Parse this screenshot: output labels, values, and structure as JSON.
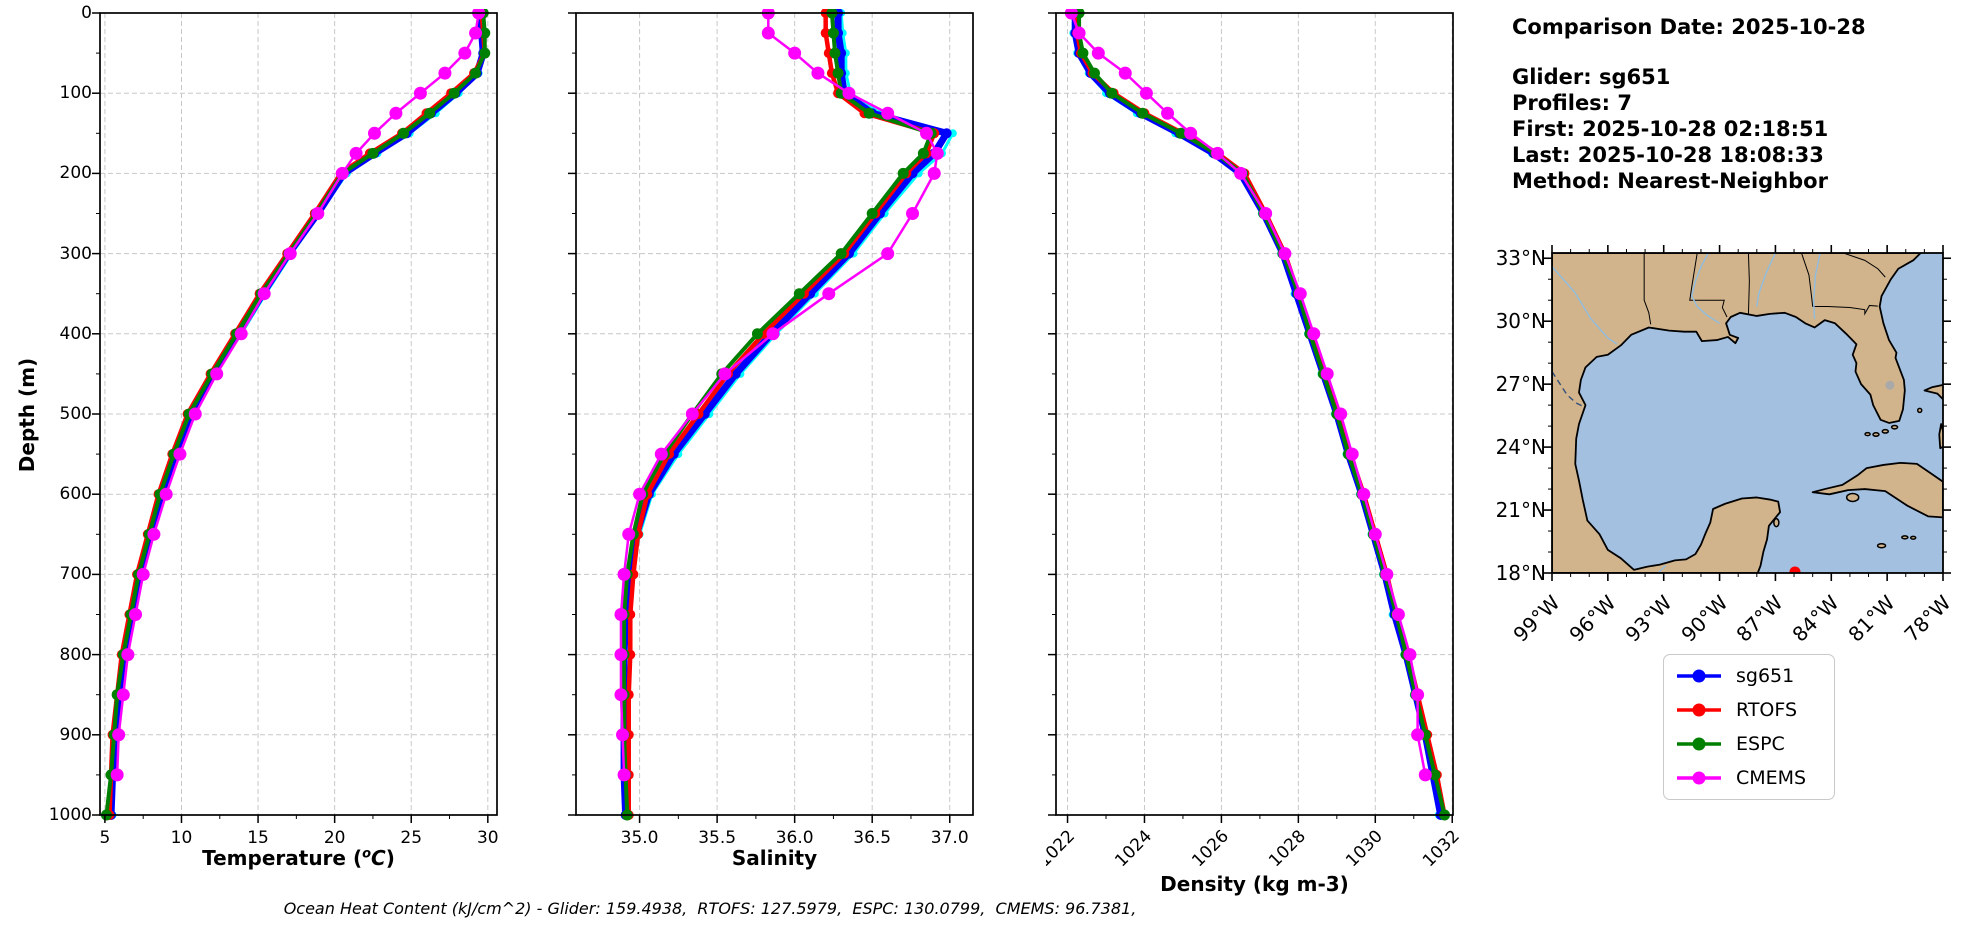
{
  "info_panel": {
    "comparison_date": "Comparison Date: 2025-10-28",
    "glider": "Glider: sg651",
    "profiles": "Profiles: 7",
    "first": "First: 2025-10-28 02:18:51",
    "last": "Last: 2025-10-28 18:08:33",
    "method": "Method: Nearest-Neighbor"
  },
  "ylabel": "Depth (m)",
  "depth_ticks": [
    0,
    100,
    200,
    300,
    400,
    500,
    600,
    700,
    800,
    900,
    1000
  ],
  "caption": "Ocean Heat Content (kJ/cm^2) - Glider: 159.4938,  RTOFS: 127.5979,  ESPC: 130.0799,  CMEMS: 96.7381,",
  "ocean_heat_content": {
    "glider": 159.4938,
    "rtofs": 127.5979,
    "espc": 130.0799,
    "cmems": 96.7381
  },
  "legend": {
    "entries": [
      {
        "label": "sg651",
        "color": "#0000ff"
      },
      {
        "label": "RTOFS",
        "color": "#ff0000"
      },
      {
        "label": "ESPC",
        "color": "#008000"
      },
      {
        "label": "CMEMS",
        "color": "#ff00ff"
      }
    ]
  },
  "profile_depths": [
    0,
    25,
    50,
    75,
    100,
    125,
    150,
    175,
    200,
    250,
    300,
    350,
    400,
    450,
    500,
    550,
    600,
    650,
    700,
    750,
    800,
    850,
    900,
    950,
    1000
  ],
  "chart_data": [
    {
      "type": "line",
      "xlabel": "Temperature (°C)",
      "xlabel_parts": {
        "pre": "Temperature (",
        "sup": "o",
        "it": "C",
        "post": ")"
      },
      "ylabel": "Depth (m)",
      "xlim": [
        4.68,
        30.6
      ],
      "ylim": [
        1000,
        0
      ],
      "xticks": [
        5,
        10,
        15,
        20,
        25,
        30
      ],
      "grid": true,
      "x_tick_rotation": 0,
      "series": [
        {
          "name": "glider-individual-profiles",
          "color": "#00ffff",
          "in_legend": false,
          "values": [
            29.5,
            29.6,
            29.8,
            29.4,
            28.1,
            26.6,
            24.9,
            22.8,
            20.8,
            19.0,
            17.2,
            15.5,
            13.9,
            12.2,
            10.8,
            9.8,
            8.9,
            8.1,
            7.4,
            6.9,
            6.4,
            6.0,
            5.8,
            5.6,
            5.5
          ]
        },
        {
          "name": "sg651",
          "color": "#0000ff",
          "in_legend": true,
          "values": [
            29.5,
            29.6,
            29.7,
            29.3,
            27.9,
            26.3,
            24.7,
            22.6,
            20.6,
            18.9,
            17.0,
            15.3,
            13.7,
            12.1,
            10.6,
            9.6,
            8.7,
            8.0,
            7.3,
            6.8,
            6.3,
            5.9,
            5.7,
            5.5,
            5.4
          ]
        },
        {
          "name": "RTOFS",
          "color": "#ff0000",
          "in_legend": true,
          "values": [
            29.6,
            29.7,
            29.8,
            29.1,
            27.6,
            26.0,
            24.4,
            22.3,
            20.4,
            18.7,
            16.9,
            15.1,
            13.5,
            11.9,
            10.4,
            9.4,
            8.5,
            7.8,
            7.1,
            6.6,
            6.1,
            5.8,
            5.5,
            5.4,
            5.3
          ]
        },
        {
          "name": "ESPC",
          "color": "#008000",
          "in_legend": true,
          "values": [
            29.7,
            29.8,
            29.8,
            29.2,
            27.8,
            26.2,
            24.5,
            22.5,
            20.5,
            18.8,
            17.0,
            15.2,
            13.6,
            12.0,
            10.5,
            9.5,
            8.6,
            7.9,
            7.2,
            6.7,
            6.2,
            5.8,
            5.6,
            5.4,
            5.1
          ]
        },
        {
          "name": "CMEMS",
          "color": "#ff00ff",
          "in_legend": true,
          "values": [
            29.4,
            29.2,
            28.5,
            27.2,
            25.6,
            24.0,
            22.6,
            21.4,
            20.5,
            18.9,
            17.1,
            15.4,
            13.9,
            12.3,
            10.9,
            9.9,
            9.0,
            8.2,
            7.5,
            7.0,
            6.5,
            6.2,
            5.9,
            5.8,
            null
          ]
        }
      ]
    },
    {
      "type": "line",
      "xlabel": "Salinity",
      "ylabel": "Depth (m)",
      "xlim": [
        34.59,
        37.15
      ],
      "ylim": [
        1000,
        0
      ],
      "xticks": [
        35.0,
        35.5,
        36.0,
        36.5,
        37.0
      ],
      "grid": true,
      "x_tick_rotation": 0,
      "series": [
        {
          "name": "glider-individual-profiles",
          "color": "#00ffff",
          "in_legend": false,
          "values": [
            36.3,
            36.31,
            36.33,
            36.33,
            36.36,
            36.55,
            37.02,
            36.95,
            36.8,
            36.58,
            36.38,
            36.13,
            35.88,
            35.65,
            35.45,
            35.25,
            35.08,
            35.0,
            34.95,
            34.92,
            34.91,
            34.91,
            34.91,
            34.91,
            34.92
          ]
        },
        {
          "name": "sg651",
          "color": "#0000ff",
          "in_legend": true,
          "values": [
            36.28,
            36.28,
            36.3,
            36.3,
            36.32,
            36.5,
            36.98,
            36.9,
            36.76,
            36.55,
            36.35,
            36.1,
            35.85,
            35.62,
            35.42,
            35.22,
            35.06,
            34.98,
            34.93,
            34.91,
            34.9,
            34.9,
            34.9,
            34.9,
            34.91
          ]
        },
        {
          "name": "RTOFS",
          "color": "#ff0000",
          "in_legend": true,
          "values": [
            36.2,
            36.2,
            36.22,
            36.24,
            36.28,
            36.45,
            36.9,
            36.85,
            36.72,
            36.52,
            36.32,
            36.06,
            35.8,
            35.57,
            35.38,
            35.19,
            35.05,
            34.99,
            34.96,
            34.94,
            34.94,
            34.93,
            34.93,
            34.93,
            34.93
          ]
        },
        {
          "name": "ESPC",
          "color": "#008000",
          "in_legend": true,
          "values": [
            36.24,
            36.25,
            36.26,
            36.28,
            36.3,
            36.48,
            36.88,
            36.83,
            36.7,
            36.5,
            36.3,
            36.03,
            35.76,
            35.53,
            35.34,
            35.16,
            35.02,
            34.96,
            34.92,
            34.9,
            34.9,
            34.9,
            34.9,
            34.91,
            34.92
          ]
        },
        {
          "name": "CMEMS",
          "color": "#ff00ff",
          "in_legend": true,
          "values": [
            35.83,
            35.83,
            36.0,
            36.15,
            36.35,
            36.6,
            36.85,
            36.92,
            36.9,
            36.76,
            36.6,
            36.22,
            35.86,
            35.55,
            35.34,
            35.14,
            35.0,
            34.93,
            34.9,
            34.88,
            34.88,
            34.88,
            34.89,
            34.9,
            null
          ]
        }
      ]
    },
    {
      "type": "line",
      "xlabel": "Density (kg m-3)",
      "ylabel": "Depth (m)",
      "xlim": [
        1021.7,
        1032.02
      ],
      "ylim": [
        1000,
        0
      ],
      "xticks": [
        1022,
        1024,
        1026,
        1028,
        1030,
        1032
      ],
      "grid": true,
      "x_tick_rotation": 45,
      "series": [
        {
          "name": "glider-individual-profiles",
          "color": "#00ffff",
          "in_legend": false,
          "values": [
            1022.15,
            1022.15,
            1022.25,
            1022.55,
            1023.0,
            1023.8,
            1024.8,
            1025.75,
            1026.45,
            1027.05,
            1027.55,
            1027.9,
            1028.25,
            1028.6,
            1028.95,
            1029.25,
            1029.6,
            1029.9,
            1030.2,
            1030.45,
            1030.75,
            1031.0,
            1031.25,
            1031.45,
            1031.65
          ]
        },
        {
          "name": "sg651",
          "color": "#0000ff",
          "in_legend": true,
          "values": [
            1022.2,
            1022.2,
            1022.3,
            1022.6,
            1023.1,
            1023.9,
            1024.9,
            1025.8,
            1026.5,
            1027.1,
            1027.6,
            1027.95,
            1028.3,
            1028.65,
            1029.0,
            1029.3,
            1029.65,
            1029.95,
            1030.25,
            1030.5,
            1030.8,
            1031.05,
            1031.3,
            1031.5,
            1031.7
          ]
        },
        {
          "name": "RTOFS",
          "color": "#ff0000",
          "in_legend": true,
          "values": [
            1022.25,
            1022.25,
            1022.35,
            1022.65,
            1023.2,
            1024.0,
            1025.0,
            1025.9,
            1026.6,
            1027.15,
            1027.65,
            1028.0,
            1028.35,
            1028.7,
            1029.05,
            1029.35,
            1029.7,
            1030.0,
            1030.3,
            1030.55,
            1030.85,
            1031.1,
            1031.35,
            1031.6,
            1031.8
          ]
        },
        {
          "name": "ESPC",
          "color": "#008000",
          "in_legend": true,
          "values": [
            1022.3,
            1022.3,
            1022.4,
            1022.7,
            1023.15,
            1023.95,
            1024.95,
            1025.85,
            1026.55,
            1027.1,
            1027.6,
            1028.0,
            1028.3,
            1028.65,
            1029.0,
            1029.3,
            1029.65,
            1029.95,
            1030.25,
            1030.55,
            1030.8,
            1031.05,
            1031.3,
            1031.55,
            1031.8
          ]
        },
        {
          "name": "CMEMS",
          "color": "#ff00ff",
          "in_legend": true,
          "values": [
            1022.1,
            1022.3,
            1022.8,
            1023.5,
            1024.05,
            1024.6,
            1025.2,
            1025.9,
            1026.5,
            1027.15,
            1027.65,
            1028.05,
            1028.4,
            1028.75,
            1029.1,
            1029.4,
            1029.7,
            1030.0,
            1030.3,
            1030.6,
            1030.9,
            1031.1,
            1031.1,
            1031.3,
            null
          ]
        }
      ]
    }
  ],
  "map": {
    "extent": {
      "lon_min": -99,
      "lon_max": -78,
      "lat_min": 18,
      "lat_max": 33.25
    },
    "lat_ticks": [
      {
        "label": "33°N",
        "value": 33
      },
      {
        "label": "30°N",
        "value": 30
      },
      {
        "label": "27°N",
        "value": 27
      },
      {
        "label": "24°N",
        "value": 24
      },
      {
        "label": "21°N",
        "value": 21
      },
      {
        "label": "18°N",
        "value": 18
      }
    ],
    "lon_ticks": [
      {
        "label": "99°W",
        "value": -99
      },
      {
        "label": "96°W",
        "value": -96
      },
      {
        "label": "93°W",
        "value": -93
      },
      {
        "label": "90°W",
        "value": -90
      },
      {
        "label": "87°W",
        "value": -87
      },
      {
        "label": "84°W",
        "value": -84
      },
      {
        "label": "81°W",
        "value": -81
      },
      {
        "label": "78°W",
        "value": -78
      }
    ],
    "land_color": "#D2B48C",
    "water_color": "#A3C0E0",
    "coast_color": "#000000",
    "river_color": "#8FBDE0",
    "lake_color": "#a9a9a9",
    "glider_marker": {
      "lon": -85.95,
      "lat": 18.05,
      "color": "#ff0000"
    }
  }
}
